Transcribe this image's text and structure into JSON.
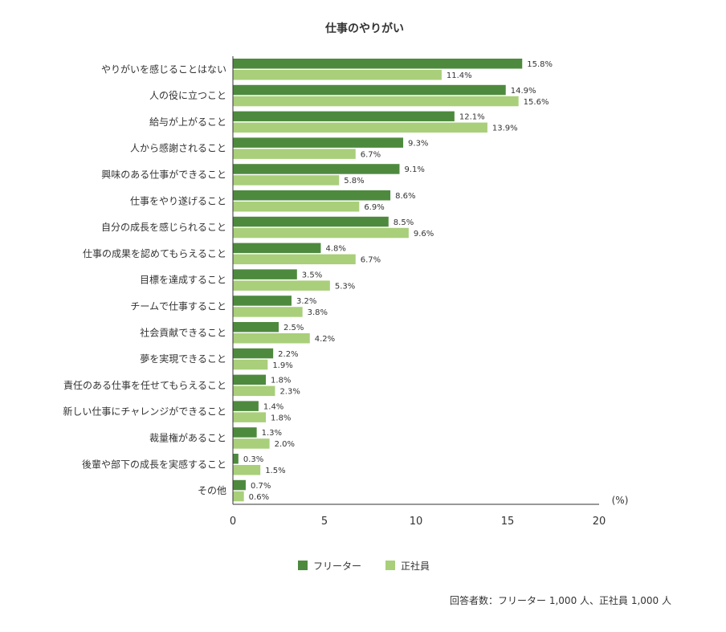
{
  "chart_data": {
    "type": "bar",
    "orientation": "horizontal",
    "title": "仕事のやりがい",
    "unit": "(%)",
    "xlim": [
      0,
      20
    ],
    "x_ticks": [
      "0",
      "5",
      "10",
      "15",
      "20"
    ],
    "legend_position": "bottom",
    "categories": [
      "やりがいを感じることはない",
      "人の役に立つこと",
      "給与が上がること",
      "人から感謝されること",
      "興味のある仕事ができること",
      "仕事をやり遂げること",
      "自分の成長を感じられること",
      "仕事の成果を認めてもらえること",
      "目標を達成すること",
      "チームで仕事すること",
      "社会貢献できること",
      "夢を実現できること",
      "責任のある仕事を任せてもらえること",
      "新しい仕事にチャレンジができること",
      "裁量権があること",
      "後輩や部下の成長を実感すること",
      "その他"
    ],
    "series": [
      {
        "name": "フリーター",
        "color": "#4e8a3e",
        "values": [
          15.8,
          14.9,
          12.1,
          9.3,
          9.1,
          8.6,
          8.5,
          4.8,
          3.5,
          3.2,
          2.5,
          2.2,
          1.8,
          1.4,
          1.3,
          0.3,
          0.7
        ],
        "labels": [
          "15.8%",
          "14.9%",
          "12.1%",
          "9.3%",
          "9.1%",
          "8.6%",
          "8.5%",
          "4.8%",
          "3.5%",
          "3.2%",
          "2.5%",
          "2.2%",
          "1.8%",
          "1.4%",
          "1.3%",
          "0.3%",
          "0.7%"
        ]
      },
      {
        "name": "正社員",
        "color": "#a9cf7a",
        "values": [
          11.4,
          15.6,
          13.9,
          6.7,
          5.8,
          6.9,
          9.6,
          6.7,
          5.3,
          3.8,
          4.2,
          1.9,
          2.3,
          1.8,
          2.0,
          1.5,
          0.6
        ],
        "labels": [
          "11.4%",
          "15.6%",
          "13.9%",
          "6.7%",
          "5.8%",
          "6.9%",
          "9.6%",
          "6.7%",
          "5.3%",
          "3.8%",
          "4.2%",
          "1.9%",
          "2.3%",
          "1.8%",
          "2.0%",
          "1.5%",
          "0.6%"
        ]
      }
    ],
    "note": "回答者数：フリーター 1,000 人、正社員 1,000 人"
  }
}
